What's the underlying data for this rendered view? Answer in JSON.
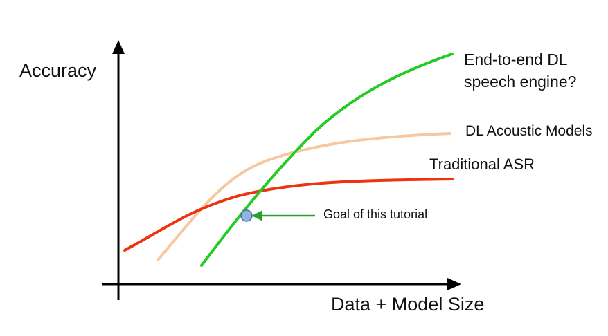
{
  "axes": {
    "y_label": "Accuracy",
    "x_label": "Data + Model Size"
  },
  "series": [
    {
      "id": "green",
      "label_lines": [
        "End-to-end DL",
        "speech engine?"
      ],
      "color": "#22cc22"
    },
    {
      "id": "peach",
      "label": "DL Acoustic Models",
      "color": "#f5c8a2"
    },
    {
      "id": "red",
      "label": "Traditional ASR",
      "color": "#ee3311"
    }
  ],
  "annotation": {
    "text": "Goal of this tutorial",
    "arrow_color": "#2aa02a",
    "marker_color": "#8db4e2"
  },
  "colors": {
    "axis": "#000000",
    "background": "#ffffff"
  }
}
